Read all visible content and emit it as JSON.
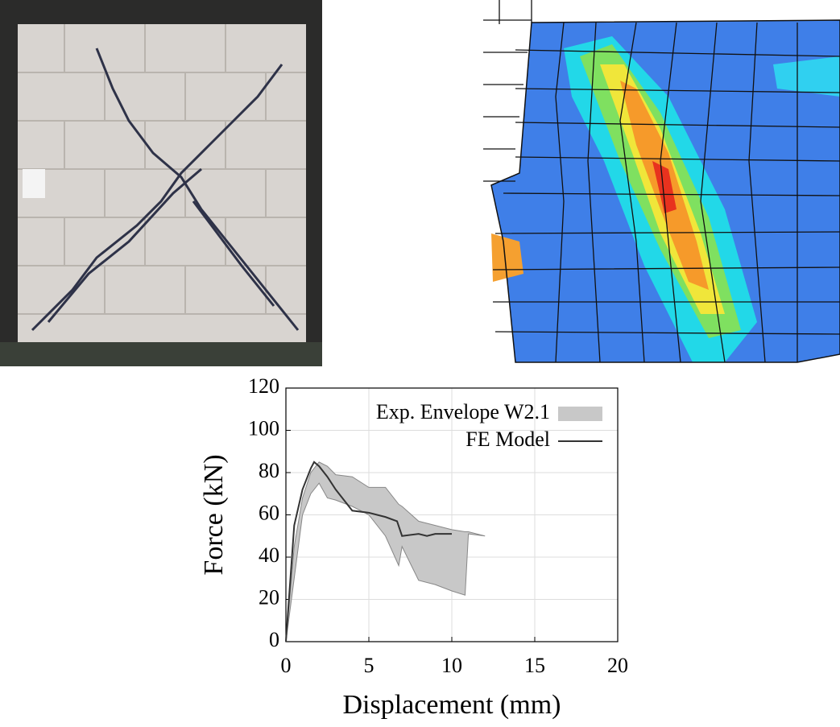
{
  "chart_data": {
    "type": "line",
    "xlabel": "Displacement (mm)",
    "ylabel": "Force (kN)",
    "xlim": [
      0,
      20
    ],
    "ylim": [
      0,
      120
    ],
    "xticks": [
      0,
      5,
      10,
      15,
      20
    ],
    "yticks": [
      0,
      20,
      40,
      60,
      80,
      100,
      120
    ],
    "grid": true,
    "legend": "upper right",
    "series": [
      {
        "name": "Exp. Envelope W2.1",
        "kind": "band",
        "color": "#c8c8c8",
        "x": [
          0,
          0.5,
          1,
          1.5,
          2,
          2.5,
          3,
          4,
          5,
          6,
          6.8,
          7,
          8,
          9,
          10,
          10.8,
          11,
          12
        ],
        "upper": [
          0,
          45,
          68,
          80,
          85,
          83,
          79,
          78,
          73,
          73,
          65,
          64,
          57,
          55,
          53,
          52,
          52,
          50
        ],
        "lower": [
          0,
          30,
          60,
          70,
          75,
          68,
          67,
          64,
          60,
          50,
          36,
          45,
          29,
          27,
          24,
          22,
          51,
          50
        ]
      },
      {
        "name": "FE Model",
        "kind": "line",
        "color": "#333333",
        "x": [
          0,
          0.5,
          1,
          1.5,
          1.7,
          2,
          2.5,
          3,
          3.5,
          4,
          5,
          6,
          6.7,
          7,
          8,
          8.5,
          9,
          10
        ],
        "values": [
          0,
          55,
          72,
          82,
          85,
          83,
          78,
          72,
          67,
          62,
          61,
          59,
          57,
          50,
          51,
          50,
          51,
          51
        ]
      }
    ]
  }
}
